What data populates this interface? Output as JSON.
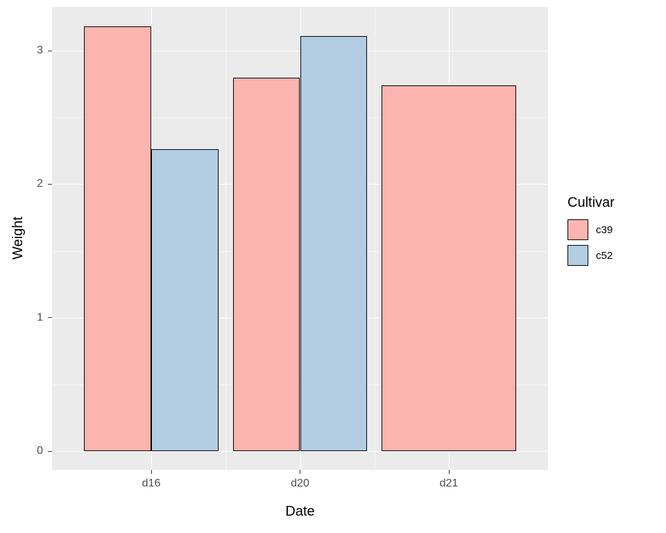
{
  "chart_data": {
    "type": "bar",
    "title": "",
    "xlabel": "Date",
    "ylabel": "Weight",
    "categories": [
      "d16",
      "d20",
      "d21"
    ],
    "series": [
      {
        "name": "c39",
        "color": "#FBB4AE",
        "values": [
          3.18,
          2.8,
          2.74
        ]
      },
      {
        "name": "c52",
        "color": "#B3CDE3",
        "values": [
          2.26,
          3.11,
          null
        ]
      }
    ],
    "yticks": [
      0,
      1,
      2,
      3
    ],
    "ylim": [
      0,
      3.34
    ],
    "grid": "on",
    "bar_outline_color": "#000000",
    "panel_background": "#EBEBEB",
    "gridline_color": "#FFFFFF",
    "legend": {
      "title": "Cultivar",
      "position": "right"
    }
  }
}
